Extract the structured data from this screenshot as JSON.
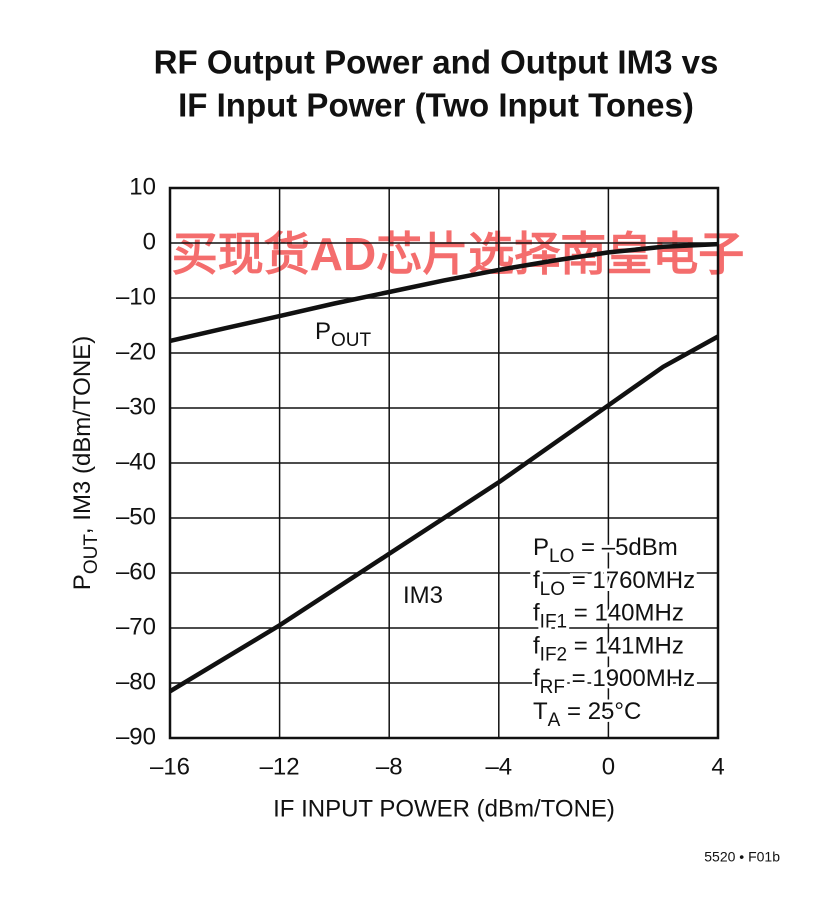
{
  "chart_data": {
    "type": "line",
    "title": [
      "RF Output Power and Output IM3 vs",
      "IF Input Power (Two Input Tones)"
    ],
    "x_label": "IF INPUT POWER (dBm/TONE)",
    "y_label": {
      "base": "P",
      "sub": "OUT",
      "rest": ", IM3 (dBm/TONE)"
    },
    "x": [
      -16,
      -14,
      -12,
      -10,
      -8,
      -6,
      -4,
      -2,
      0,
      2,
      4
    ],
    "series": [
      {
        "label": {
          "base": "P",
          "sub": "OUT"
        },
        "color": "#111111",
        "values": [
          -17.8,
          -15.5,
          -13.3,
          -11,
          -8.9,
          -6.8,
          -4.9,
          -3.2,
          -1.7,
          -0.7,
          -0.2
        ]
      },
      {
        "label": {
          "base": "IM3"
        },
        "color": "#111111",
        "values": [
          -81.5,
          -75.5,
          -69.5,
          -63,
          -56.5,
          -50,
          -43.5,
          -36.5,
          -29.5,
          -22.5,
          -17
        ]
      }
    ],
    "xlim": [
      -16,
      4
    ],
    "ylim": [
      -90,
      10
    ],
    "xticks": [
      {
        "value": -16,
        "label": "–16"
      },
      {
        "value": -12,
        "label": "–12"
      },
      {
        "value": -8,
        "label": "–8"
      },
      {
        "value": -4,
        "label": "–4"
      },
      0,
      4
    ],
    "yticks": [
      10,
      0,
      {
        "value": -10,
        "label": "–10"
      },
      {
        "value": -20,
        "label": "–20"
      },
      {
        "value": -30,
        "label": "–30"
      },
      {
        "value": -40,
        "label": "–40"
      },
      {
        "value": -50,
        "label": "–50"
      },
      {
        "value": -60,
        "label": "–60"
      },
      {
        "value": -70,
        "label": "–70"
      },
      {
        "value": -80,
        "label": "–80"
      },
      {
        "value": -90,
        "label": "–90"
      }
    ],
    "grid": true,
    "conditions": [
      {
        "base": "P",
        "sub": "LO",
        "rest": " = –5dBm"
      },
      {
        "base": "f",
        "sub": "LO",
        "rest": " = 1760MHz"
      },
      {
        "base": "f",
        "sub": "IF1",
        "rest": " = 140MHz"
      },
      {
        "base": "f",
        "sub": "IF2",
        "rest": " = 141MHz"
      },
      {
        "base": "f",
        "sub": "RF",
        "rest": " = 1900MHz"
      },
      {
        "base": "T",
        "sub": "A",
        "rest": " = 25°C"
      }
    ],
    "watermark": "买现货AD芯片选择南皇电子",
    "figure_id": "5520 • F01b"
  }
}
